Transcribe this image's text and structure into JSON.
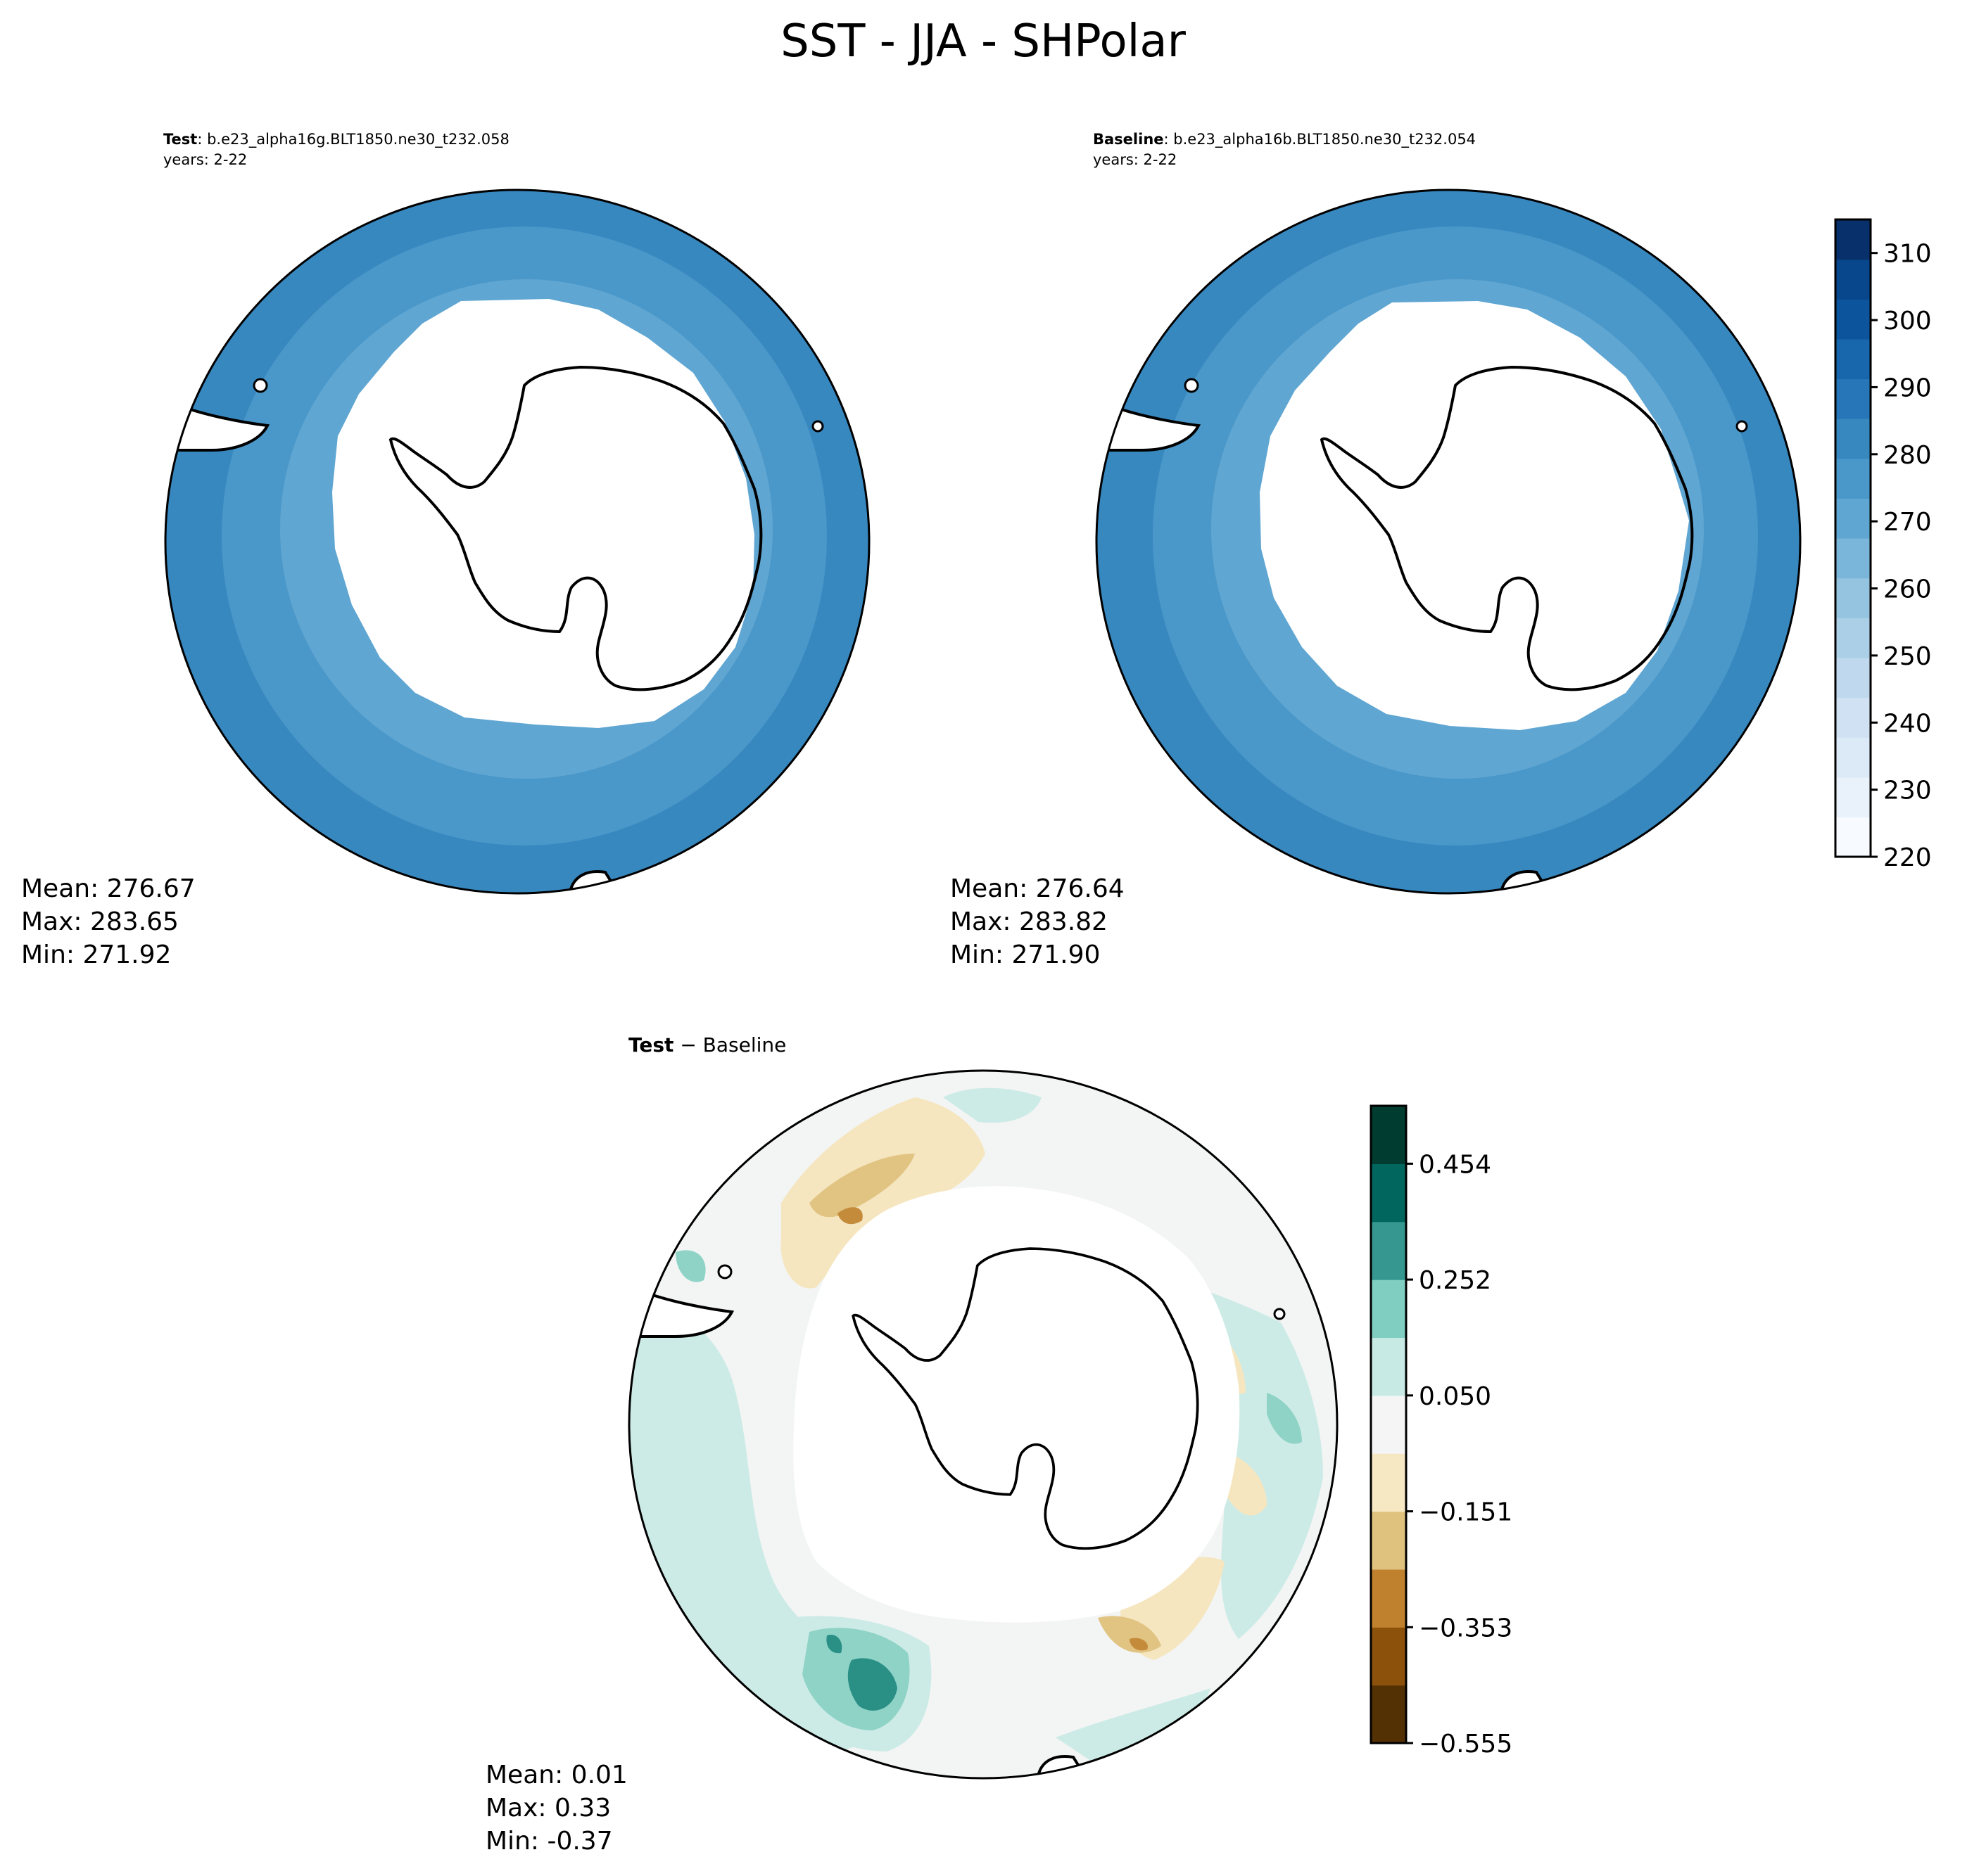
{
  "figure": {
    "title": "SST - JJA - SHPolar"
  },
  "panels": {
    "test": {
      "label_bold": "Test",
      "label_rest": ": b.e23_alpha16g.BLT1850.ne30_t232.058",
      "years": "years: 2-22",
      "stats": {
        "mean": "Mean: 276.67",
        "max": "Max: 283.65",
        "min": "Min: 271.92"
      }
    },
    "baseline": {
      "label_bold": "Baseline",
      "label_rest": ": b.e23_alpha16b.BLT1850.ne30_t232.054",
      "years": "years: 2-22",
      "stats": {
        "mean": "Mean: 276.64",
        "max": "Max: 283.82",
        "min": "Min: 271.90"
      }
    },
    "diff": {
      "label_bold": "Test",
      "label_rest": " − Baseline",
      "stats": {
        "mean": "Mean:  0.01",
        "max": "Max:  0.33",
        "min": "Min: -0.37"
      }
    }
  },
  "colorbar_main": {
    "ticks": [
      "220",
      "230",
      "240",
      "250",
      "260",
      "270",
      "280",
      "290",
      "300",
      "310"
    ],
    "range": [
      220,
      315
    ],
    "colors": [
      "#f7fbff",
      "#e9f2fb",
      "#dce9f6",
      "#cfe1f2",
      "#bfd8ed",
      "#abcfe6",
      "#94c4df",
      "#7ab6d9",
      "#60a6d2",
      "#4a98c9",
      "#3888c0",
      "#2777b8",
      "#1866ab",
      "#0c559d",
      "#08478c",
      "#08306b"
    ]
  },
  "colorbar_diff": {
    "ticks": [
      "0.454",
      "0.252",
      "0.050",
      "−0.151",
      "−0.353",
      "−0.555"
    ],
    "colors": [
      "#543005",
      "#8c510a",
      "#bf812d",
      "#dfc27d",
      "#f6e8c3",
      "#f5f5f5",
      "#c7eae5",
      "#80cdc1",
      "#35978f",
      "#01665e",
      "#003c30"
    ]
  },
  "map_colors": {
    "outer_band": "#3888c0",
    "mid_band": "#4a98c9",
    "inner_band": "#60a6d2",
    "ice": "#ffffff",
    "diff_base": "#f3f5f4",
    "diff_pos_light": "#cdebe6",
    "diff_pos_mid": "#8fd3c7",
    "diff_pos_strong": "#2a8f85",
    "diff_neg_light": "#f5e6c0",
    "diff_neg_mid": "#e1c382",
    "diff_neg_strong": "#c38b3a"
  }
}
